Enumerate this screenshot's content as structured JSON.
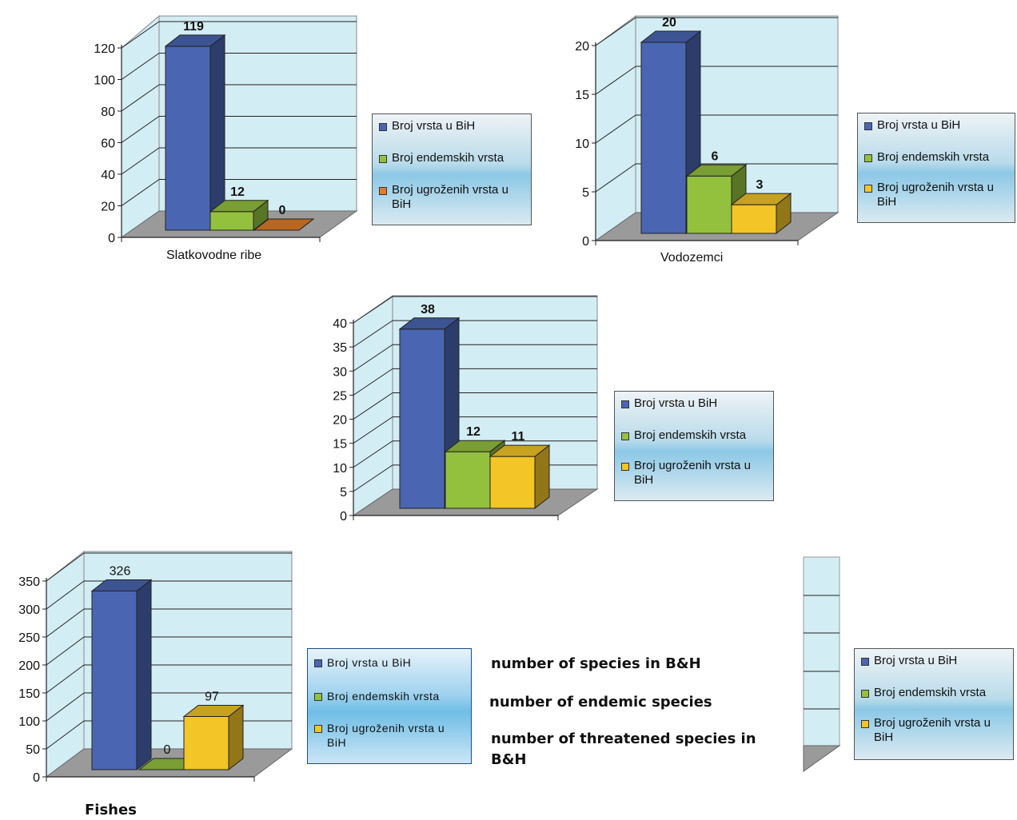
{
  "colors": {
    "back_wall": "#d3edf4",
    "floor": "#9a9a9a",
    "grid": "#222222",
    "blue": "#4a66b2",
    "green": "#93c13e",
    "yellow": "#f3c526",
    "orange": "#e07d2a"
  },
  "legend_labels": {
    "species": "Broj vrsta u BiH",
    "endemic": "Broj endemskih vrsta",
    "threatened": "Broj ugroženih vrsta u BiH"
  },
  "translations": {
    "species": "number of species in B&H",
    "endemic": "number of endemic species",
    "threatened": "number of threatened species in B&H"
  },
  "chart_data": [
    {
      "type": "bar",
      "categories": [
        "Slatkovodne ribe"
      ],
      "series": [
        {
          "name": "Broj vrsta u BiH",
          "values": [
            119
          ]
        },
        {
          "name": "Broj endemskih vrsta",
          "values": [
            12
          ]
        },
        {
          "name": "Broj ugroženih vrsta u BiH",
          "values": [
            0
          ]
        }
      ],
      "ylim": [
        0,
        120
      ],
      "yticks": [
        0,
        20,
        40,
        60,
        80,
        100,
        120
      ],
      "grid": true,
      "legend": "right"
    },
    {
      "type": "bar",
      "categories": [
        "Vodozemci"
      ],
      "series": [
        {
          "name": "Broj vrsta u BiH",
          "values": [
            20
          ]
        },
        {
          "name": "Broj endemskih vrsta",
          "values": [
            6
          ]
        },
        {
          "name": "Broj ugroženih vrsta u BiH",
          "values": [
            3
          ]
        }
      ],
      "ylim": [
        0,
        20
      ],
      "yticks": [
        0,
        5,
        10,
        15,
        20
      ],
      "grid": true,
      "legend": "right"
    },
    {
      "type": "bar",
      "categories": [
        ""
      ],
      "series": [
        {
          "name": "Broj vrsta u BiH",
          "values": [
            38
          ]
        },
        {
          "name": "Broj endemskih vrsta",
          "values": [
            12
          ]
        },
        {
          "name": "Broj ugroženih vrsta u BiH",
          "values": [
            11
          ]
        }
      ],
      "ylim": [
        0,
        40
      ],
      "yticks": [
        0,
        5,
        10,
        15,
        20,
        25,
        30,
        35,
        40
      ],
      "grid": true,
      "legend": "right"
    },
    {
      "type": "bar",
      "categories": [
        "Fishes"
      ],
      "series": [
        {
          "name": "Broj vrsta u BiH",
          "values": [
            326
          ]
        },
        {
          "name": "Broj endemskih vrsta",
          "values": [
            0
          ]
        },
        {
          "name": "Broj ugroženih vrsta u BiH",
          "values": [
            97
          ]
        }
      ],
      "ylim": [
        0,
        350
      ],
      "yticks": [
        0,
        50,
        100,
        150,
        200,
        250,
        300,
        350
      ],
      "grid": true,
      "legend": "right"
    }
  ]
}
